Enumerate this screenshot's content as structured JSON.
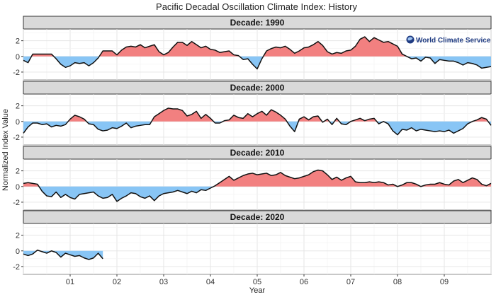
{
  "chart_data": {
    "type": "area",
    "title": "Pacific Decadal Oscillation Climate Index: History",
    "xlabel": "Year",
    "ylabel": "Normalized Index Value",
    "ylim": [
      -3,
      3.5
    ],
    "yticks": [
      -2,
      0,
      2
    ],
    "xlim": [
      0,
      10
    ],
    "xticks": [
      1,
      2,
      3,
      4,
      5,
      6,
      7,
      8,
      9
    ],
    "xtick_labels": [
      "01",
      "02",
      "03",
      "04",
      "05",
      "06",
      "07",
      "08",
      "09"
    ],
    "watermark": "World Climate Service",
    "fill_colors": {
      "positive": "#f28080",
      "negative": "#88c5f5"
    },
    "panels": [
      {
        "label": "Decade: 1990",
        "points": [
          [
            0.0,
            -0.5
          ],
          [
            0.1,
            -0.8
          ],
          [
            0.2,
            0.3
          ],
          [
            0.3,
            0.3
          ],
          [
            0.4,
            0.3
          ],
          [
            0.5,
            0.3
          ],
          [
            0.6,
            0.3
          ],
          [
            0.7,
            -0.3
          ],
          [
            0.8,
            -1.0
          ],
          [
            0.9,
            -1.4
          ],
          [
            1.0,
            -1.2
          ],
          [
            1.1,
            -0.8
          ],
          [
            1.2,
            -0.9
          ],
          [
            1.3,
            -0.8
          ],
          [
            1.4,
            -1.2
          ],
          [
            1.5,
            -0.8
          ],
          [
            1.6,
            -0.2
          ],
          [
            1.7,
            0.7
          ],
          [
            1.8,
            0.7
          ],
          [
            1.9,
            0.7
          ],
          [
            2.0,
            0.2
          ],
          [
            2.1,
            0.8
          ],
          [
            2.2,
            1.2
          ],
          [
            2.3,
            1.3
          ],
          [
            2.4,
            1.2
          ],
          [
            2.5,
            1.5
          ],
          [
            2.6,
            1.1
          ],
          [
            2.7,
            1.3
          ],
          [
            2.8,
            1.5
          ],
          [
            2.9,
            0.6
          ],
          [
            3.0,
            0.2
          ],
          [
            3.1,
            0.5
          ],
          [
            3.2,
            1.2
          ],
          [
            3.3,
            1.8
          ],
          [
            3.4,
            1.8
          ],
          [
            3.5,
            1.4
          ],
          [
            3.6,
            1.9
          ],
          [
            3.7,
            1.5
          ],
          [
            3.8,
            1.1
          ],
          [
            3.9,
            1.3
          ],
          [
            4.0,
            0.9
          ],
          [
            4.1,
            0.8
          ],
          [
            4.2,
            0.5
          ],
          [
            4.3,
            0.6
          ],
          [
            4.4,
            0.7
          ],
          [
            4.5,
            0.2
          ],
          [
            4.6,
            0.1
          ],
          [
            4.7,
            -0.4
          ],
          [
            4.8,
            -0.3
          ],
          [
            4.9,
            -1.0
          ],
          [
            5.0,
            -1.6
          ],
          [
            5.1,
            -0.3
          ],
          [
            5.2,
            0.7
          ],
          [
            5.3,
            1.0
          ],
          [
            5.4,
            1.2
          ],
          [
            5.5,
            1.1
          ],
          [
            5.6,
            1.3
          ],
          [
            5.7,
            0.9
          ],
          [
            5.8,
            0.4
          ],
          [
            5.9,
            0.7
          ],
          [
            6.0,
            1.1
          ],
          [
            6.1,
            1.2
          ],
          [
            6.2,
            1.5
          ],
          [
            6.3,
            1.9
          ],
          [
            6.4,
            1.4
          ],
          [
            6.5,
            0.6
          ],
          [
            6.6,
            0.3
          ],
          [
            6.7,
            0.5
          ],
          [
            6.8,
            0.4
          ],
          [
            6.9,
            0.7
          ],
          [
            7.0,
            0.8
          ],
          [
            7.1,
            1.3
          ],
          [
            7.2,
            2.2
          ],
          [
            7.3,
            2.5
          ],
          [
            7.4,
            1.9
          ],
          [
            7.5,
            2.4
          ],
          [
            7.6,
            2.1
          ],
          [
            7.7,
            1.8
          ],
          [
            7.8,
            1.9
          ],
          [
            7.9,
            1.6
          ],
          [
            8.0,
            1.3
          ],
          [
            8.1,
            0.3
          ],
          [
            8.2,
            0.0
          ],
          [
            8.3,
            -0.3
          ],
          [
            8.4,
            -0.2
          ],
          [
            8.5,
            -0.6
          ],
          [
            8.6,
            -0.1
          ],
          [
            8.7,
            -0.2
          ],
          [
            8.8,
            -0.9
          ],
          [
            8.9,
            -0.4
          ],
          [
            9.0,
            -0.5
          ],
          [
            9.1,
            -0.6
          ],
          [
            9.2,
            -0.6
          ],
          [
            9.3,
            -0.8
          ],
          [
            9.4,
            -1.1
          ],
          [
            9.5,
            -0.8
          ],
          [
            9.6,
            -0.9
          ],
          [
            9.7,
            -1.1
          ],
          [
            9.8,
            -1.5
          ],
          [
            9.9,
            -1.4
          ],
          [
            10.0,
            -1.3
          ]
        ]
      },
      {
        "label": "Decade: 2000",
        "points": [
          [
            0.0,
            -1.5
          ],
          [
            0.1,
            -0.7
          ],
          [
            0.2,
            -0.2
          ],
          [
            0.3,
            -0.2
          ],
          [
            0.4,
            -0.4
          ],
          [
            0.5,
            -0.3
          ],
          [
            0.6,
            -0.7
          ],
          [
            0.7,
            -0.5
          ],
          [
            0.8,
            -0.6
          ],
          [
            0.9,
            -0.4
          ],
          [
            1.0,
            0.3
          ],
          [
            1.1,
            0.8
          ],
          [
            1.2,
            0.6
          ],
          [
            1.3,
            0.3
          ],
          [
            1.4,
            -0.3
          ],
          [
            1.5,
            -0.4
          ],
          [
            1.6,
            -1.0
          ],
          [
            1.7,
            -1.2
          ],
          [
            1.8,
            -1.1
          ],
          [
            1.9,
            -0.8
          ],
          [
            2.0,
            -0.9
          ],
          [
            2.1,
            -0.6
          ],
          [
            2.2,
            -0.2
          ],
          [
            2.3,
            -0.8
          ],
          [
            2.4,
            -0.6
          ],
          [
            2.5,
            -0.5
          ],
          [
            2.6,
            -0.4
          ],
          [
            2.7,
            -0.4
          ],
          [
            2.8,
            0.6
          ],
          [
            2.9,
            1.0
          ],
          [
            3.0,
            1.4
          ],
          [
            3.1,
            1.7
          ],
          [
            3.2,
            1.6
          ],
          [
            3.3,
            1.6
          ],
          [
            3.4,
            1.4
          ],
          [
            3.5,
            0.7
          ],
          [
            3.6,
            0.9
          ],
          [
            3.7,
            1.3
          ],
          [
            3.8,
            0.4
          ],
          [
            3.9,
            0.9
          ],
          [
            4.0,
            0.4
          ],
          [
            4.1,
            -0.2
          ],
          [
            4.2,
            -0.2
          ],
          [
            4.3,
            0.1
          ],
          [
            4.4,
            0.2
          ],
          [
            4.5,
            0.8
          ],
          [
            4.6,
            0.5
          ],
          [
            4.7,
            0.4
          ],
          [
            4.8,
            1.0
          ],
          [
            4.9,
            0.6
          ],
          [
            5.0,
            1.0
          ],
          [
            5.1,
            1.3
          ],
          [
            5.2,
            0.8
          ],
          [
            5.3,
            1.5
          ],
          [
            5.4,
            1.2
          ],
          [
            5.5,
            0.8
          ],
          [
            5.6,
            0.3
          ],
          [
            5.7,
            -0.6
          ],
          [
            5.8,
            -1.3
          ],
          [
            5.9,
            0.3
          ],
          [
            6.0,
            0.6
          ],
          [
            6.1,
            0.2
          ],
          [
            6.2,
            0.6
          ],
          [
            6.3,
            0.7
          ],
          [
            6.4,
            -0.1
          ],
          [
            6.5,
            0.3
          ],
          [
            6.6,
            -0.4
          ],
          [
            6.7,
            0.4
          ],
          [
            6.8,
            -0.3
          ],
          [
            6.9,
            -0.4
          ],
          [
            7.0,
            0.0
          ],
          [
            7.1,
            0.2
          ],
          [
            7.2,
            0.4
          ],
          [
            7.3,
            0.1
          ],
          [
            7.4,
            0.3
          ],
          [
            7.5,
            0.4
          ],
          [
            7.6,
            -0.3
          ],
          [
            7.7,
            0.0
          ],
          [
            7.8,
            -0.3
          ],
          [
            7.9,
            -1.2
          ],
          [
            8.0,
            -1.7
          ],
          [
            8.1,
            -1.0
          ],
          [
            8.2,
            -1.1
          ],
          [
            8.3,
            -0.8
          ],
          [
            8.4,
            -1.2
          ],
          [
            8.5,
            -1.0
          ],
          [
            8.6,
            -1.1
          ],
          [
            8.7,
            -1.2
          ],
          [
            8.8,
            -1.3
          ],
          [
            8.9,
            -1.2
          ],
          [
            9.0,
            -1.3
          ],
          [
            9.1,
            -1.1
          ],
          [
            9.2,
            -1.5
          ],
          [
            9.3,
            -1.2
          ],
          [
            9.4,
            -0.9
          ],
          [
            9.5,
            -0.3
          ],
          [
            9.6,
            0.0
          ],
          [
            9.7,
            0.2
          ],
          [
            9.8,
            0.5
          ],
          [
            9.9,
            0.3
          ],
          [
            10.0,
            -0.5
          ]
        ]
      },
      {
        "label": "Decade: 2010",
        "points": [
          [
            0.0,
            0.4
          ],
          [
            0.1,
            0.5
          ],
          [
            0.2,
            0.4
          ],
          [
            0.3,
            0.3
          ],
          [
            0.4,
            -0.6
          ],
          [
            0.5,
            -1.2
          ],
          [
            0.6,
            -1.3
          ],
          [
            0.7,
            -0.7
          ],
          [
            0.8,
            -1.4
          ],
          [
            0.9,
            -1.0
          ],
          [
            1.0,
            -1.4
          ],
          [
            1.1,
            -1.6
          ],
          [
            1.2,
            -1.0
          ],
          [
            1.3,
            -0.9
          ],
          [
            1.4,
            -0.8
          ],
          [
            1.5,
            -0.7
          ],
          [
            1.6,
            -1.2
          ],
          [
            1.7,
            -1.5
          ],
          [
            1.8,
            -1.4
          ],
          [
            1.9,
            -1.0
          ],
          [
            2.0,
            -1.9
          ],
          [
            2.1,
            -1.5
          ],
          [
            2.2,
            -1.2
          ],
          [
            2.3,
            -0.8
          ],
          [
            2.4,
            -0.9
          ],
          [
            2.5,
            -1.3
          ],
          [
            2.6,
            -1.5
          ],
          [
            2.7,
            -1.2
          ],
          [
            2.8,
            -1.8
          ],
          [
            2.9,
            -1.2
          ],
          [
            3.0,
            -0.9
          ],
          [
            3.1,
            -0.8
          ],
          [
            3.2,
            -0.7
          ],
          [
            3.3,
            -0.5
          ],
          [
            3.4,
            -0.7
          ],
          [
            3.5,
            -0.9
          ],
          [
            3.6,
            -0.6
          ],
          [
            3.7,
            -0.8
          ],
          [
            3.8,
            -0.4
          ],
          [
            3.9,
            -0.5
          ],
          [
            4.0,
            -0.2
          ],
          [
            4.1,
            0.1
          ],
          [
            4.2,
            0.5
          ],
          [
            4.3,
            0.9
          ],
          [
            4.4,
            1.3
          ],
          [
            4.5,
            0.8
          ],
          [
            4.6,
            1.1
          ],
          [
            4.7,
            1.4
          ],
          [
            4.8,
            1.6
          ],
          [
            4.9,
            1.7
          ],
          [
            5.0,
            1.5
          ],
          [
            5.1,
            1.6
          ],
          [
            5.2,
            1.7
          ],
          [
            5.3,
            1.4
          ],
          [
            5.4,
            1.5
          ],
          [
            5.5,
            1.8
          ],
          [
            5.6,
            1.4
          ],
          [
            5.7,
            1.2
          ],
          [
            5.8,
            1.0
          ],
          [
            5.9,
            1.1
          ],
          [
            6.0,
            1.3
          ],
          [
            6.1,
            1.5
          ],
          [
            6.2,
            1.9
          ],
          [
            6.3,
            2.1
          ],
          [
            6.4,
            2.0
          ],
          [
            6.5,
            1.5
          ],
          [
            6.6,
            0.9
          ],
          [
            6.7,
            1.2
          ],
          [
            6.8,
            0.8
          ],
          [
            6.9,
            1.1
          ],
          [
            7.0,
            1.3
          ],
          [
            7.1,
            0.6
          ],
          [
            7.2,
            0.5
          ],
          [
            7.3,
            0.5
          ],
          [
            7.4,
            0.6
          ],
          [
            7.5,
            0.5
          ],
          [
            7.6,
            0.6
          ],
          [
            7.7,
            0.5
          ],
          [
            7.8,
            0.2
          ],
          [
            7.9,
            0.3
          ],
          [
            8.0,
            0.0
          ],
          [
            8.1,
            0.2
          ],
          [
            8.2,
            0.5
          ],
          [
            8.3,
            0.5
          ],
          [
            8.4,
            0.3
          ],
          [
            8.5,
            0.0
          ],
          [
            8.6,
            0.2
          ],
          [
            8.7,
            0.3
          ],
          [
            8.8,
            0.3
          ],
          [
            8.9,
            0.5
          ],
          [
            9.0,
            0.3
          ],
          [
            9.1,
            0.2
          ],
          [
            9.2,
            0.7
          ],
          [
            9.3,
            0.9
          ],
          [
            9.4,
            0.5
          ],
          [
            9.5,
            0.8
          ],
          [
            9.6,
            1.1
          ],
          [
            9.7,
            0.9
          ],
          [
            9.8,
            0.3
          ],
          [
            9.9,
            0.1
          ],
          [
            10.0,
            0.4
          ]
        ]
      },
      {
        "label": "Decade: 2020",
        "points": [
          [
            0.0,
            -0.4
          ],
          [
            0.1,
            -0.6
          ],
          [
            0.2,
            -0.4
          ],
          [
            0.3,
            0.1
          ],
          [
            0.4,
            -0.1
          ],
          [
            0.5,
            -0.3
          ],
          [
            0.6,
            0.0
          ],
          [
            0.7,
            -0.2
          ],
          [
            0.8,
            -0.8
          ],
          [
            0.9,
            -0.3
          ],
          [
            1.0,
            -0.5
          ],
          [
            1.1,
            -0.7
          ],
          [
            1.2,
            -0.6
          ],
          [
            1.3,
            -0.9
          ],
          [
            1.4,
            -1.1
          ],
          [
            1.5,
            -0.9
          ],
          [
            1.6,
            -0.3
          ],
          [
            1.7,
            -1.0
          ]
        ]
      }
    ]
  }
}
